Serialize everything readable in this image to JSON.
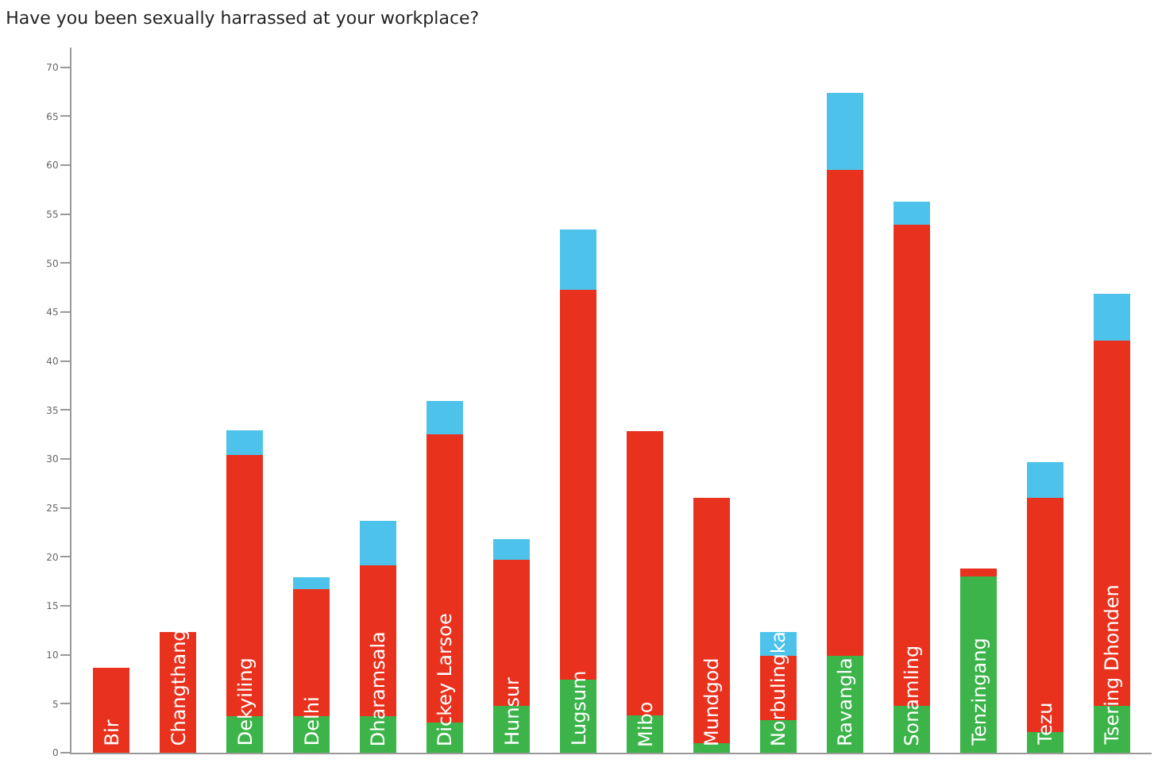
{
  "chart_data": {
    "type": "bar",
    "title": "Have you been sexually harrassed at your workplace?",
    "categories": [
      "Bir",
      "Changthang",
      "Dekyiling",
      "Delhi",
      "Dharamsala",
      "Dickey Larsoe",
      "Hunsur",
      "Lugsum",
      "Mibo",
      "Mundgod",
      "Norbulingka",
      "Ravangla",
      "Sonamling",
      "Tenzingang",
      "Tezu",
      "Tsering Dhonden"
    ],
    "stacked": true,
    "series": [
      {
        "color": "#3cb44a",
        "values": [
          0,
          0,
          3.7,
          3.7,
          3.7,
          3.1,
          4.8,
          7.5,
          3.8,
          1.0,
          3.3,
          9.9,
          4.8,
          18.0,
          2.1,
          4.8
        ]
      },
      {
        "color": "#e8321e",
        "values": [
          8.7,
          12.3,
          26.7,
          13.0,
          15.4,
          29.4,
          14.9,
          39.8,
          29.0,
          25.0,
          6.6,
          49.6,
          49.1,
          0.8,
          23.9,
          37.3
        ]
      },
      {
        "color": "#4dc3ec",
        "values": [
          0,
          0,
          2.5,
          1.2,
          4.6,
          3.4,
          2.1,
          6.1,
          0,
          0,
          2.4,
          7.9,
          2.4,
          0,
          3.7,
          4.8
        ]
      }
    ],
    "ylim": [
      0,
      72
    ],
    "yticks": [
      0,
      5,
      10,
      15,
      20,
      25,
      30,
      35,
      40,
      45,
      50,
      55,
      60,
      65,
      70
    ]
  }
}
